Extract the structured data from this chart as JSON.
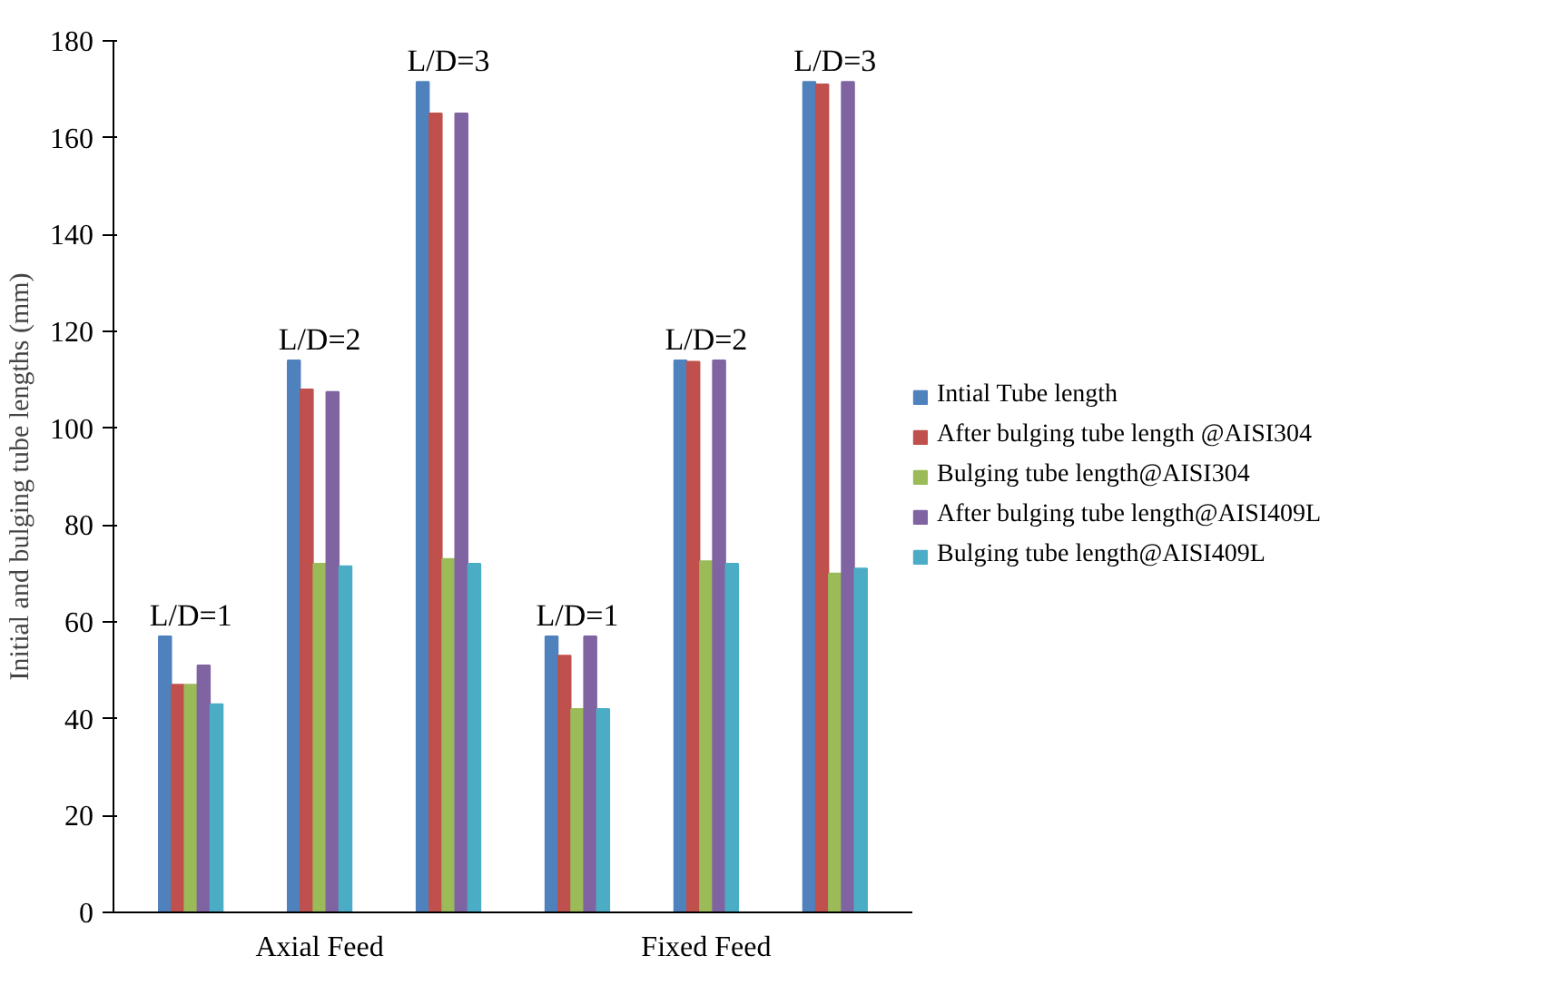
{
  "chart_data": {
    "type": "bar",
    "ylabel": "Initial and bulging tube lengths (mm)",
    "categories": [
      null,
      "Axial Feed",
      null,
      null,
      "Fixed Feed",
      null
    ],
    "series": [
      {
        "name": "Intial Tube length",
        "color": "#4f81bd",
        "values": [
          57,
          114,
          171.5,
          57,
          114,
          171.5
        ]
      },
      {
        "name": "After bulging tube length @AISI304",
        "color": "#c0504d",
        "values": [
          47,
          108,
          165,
          53,
          113.7,
          171
        ]
      },
      {
        "name": "Bulging tube length@AISI304",
        "color": "#9bbb59",
        "values": [
          47,
          72,
          73,
          42,
          72.5,
          70
        ]
      },
      {
        "name": "After bulging tube length@AISI409L",
        "color": "#8064a2",
        "values": [
          51,
          107.5,
          165,
          57,
          114,
          171.5
        ]
      },
      {
        "name": "Bulging tube length@AISI409L",
        "color": "#4bacc6",
        "values": [
          43,
          71.5,
          72,
          42,
          72,
          71
        ]
      }
    ],
    "annotations": [
      "L/D=1",
      "L/D=2",
      "L/D=3",
      "L/D=1",
      "L/D=2",
      "L/D=3"
    ],
    "ylim": [
      0,
      180
    ],
    "yticks": [
      0,
      20,
      40,
      60,
      80,
      100,
      120,
      140,
      160,
      180
    ],
    "grid": false,
    "legend": "right"
  }
}
